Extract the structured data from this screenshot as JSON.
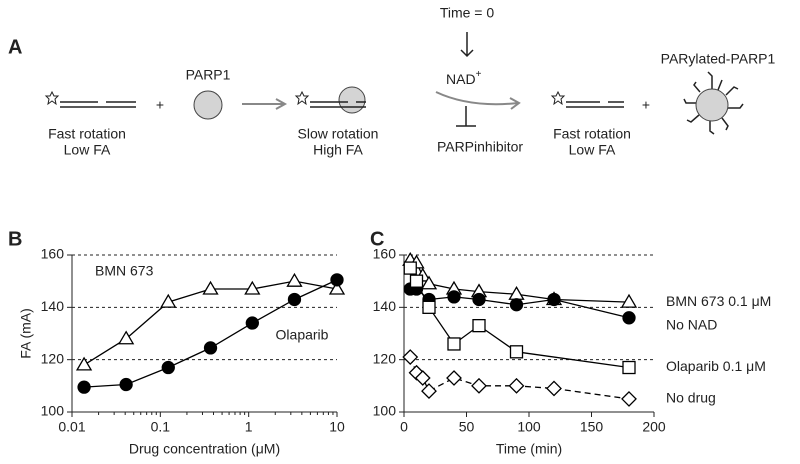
{
  "panel_a": {
    "label": "A",
    "time": "Time = 0",
    "parp1": "PARP1",
    "plus_1": "+",
    "state_1": [
      "Fast rotation",
      "Low FA"
    ],
    "state_2": [
      "Slow rotation",
      "High FA"
    ],
    "nad": "NAD",
    "nad_charge": "+",
    "inhibitor": "PARPinhibitor",
    "state_3": [
      "Fast rotation",
      "Low FA"
    ],
    "plus_2": "+",
    "product": "PARylated-PARP1"
  },
  "chart_data": [
    {
      "type": "scatter",
      "panel": "B",
      "x_label": "Drug concentration (μM)",
      "y_label": "FA (mA)",
      "xlog": true,
      "xlim": [
        0.01,
        10
      ],
      "xticks": [
        0.01,
        0.1,
        1,
        10
      ],
      "ylim": [
        100,
        160
      ],
      "yticks": [
        100,
        120,
        140,
        160
      ],
      "grid_lines": [
        120,
        140,
        160
      ],
      "series": [
        {
          "name": "BMN 673",
          "marker": "triangle",
          "filled": false,
          "color": "#000000",
          "x": [
            0.0137,
            0.041,
            0.123,
            0.37,
            1.1,
            3.3,
            10
          ],
          "values": [
            118,
            128,
            142,
            147,
            147,
            150,
            147
          ]
        },
        {
          "name": "Olaparib",
          "marker": "circle",
          "filled": true,
          "color": "#000000",
          "x": [
            0.0137,
            0.041,
            0.123,
            0.37,
            1.1,
            3.3,
            10
          ],
          "values": [
            109.5,
            110.5,
            117,
            124.5,
            134,
            143,
            150.5
          ]
        }
      ]
    },
    {
      "type": "line",
      "panel": "C",
      "x_label": "Time (min)",
      "xlog": false,
      "xlim": [
        0,
        200
      ],
      "xticks": [
        0,
        50,
        100,
        150,
        200
      ],
      "ylim": [
        100,
        160
      ],
      "yticks": [
        100,
        120,
        140,
        160
      ],
      "grid_lines": [
        120,
        140,
        160
      ],
      "series": [
        {
          "name": "BMN 673 0.1 μM",
          "marker": "triangle",
          "filled": false,
          "dashed": false,
          "color": "#000000",
          "x": [
            5,
            10,
            15,
            20,
            40,
            60,
            90,
            120,
            180
          ],
          "values": [
            158,
            157,
            152,
            149,
            147,
            146,
            145,
            143,
            142
          ]
        },
        {
          "name": "No NAD",
          "marker": "circle",
          "filled": true,
          "dashed": false,
          "color": "#000000",
          "x": [
            5,
            10,
            20,
            40,
            60,
            90,
            120,
            180
          ],
          "values": [
            147,
            147,
            143,
            144,
            143,
            141,
            143,
            136
          ]
        },
        {
          "name": "Olaparib 0.1 μM",
          "marker": "square",
          "filled": false,
          "dashed": false,
          "color": "#000000",
          "x": [
            5,
            10,
            20,
            40,
            60,
            90,
            180
          ],
          "values": [
            155,
            150,
            140,
            126,
            133,
            123,
            117
          ]
        },
        {
          "name": "No drug",
          "marker": "diamond",
          "filled": false,
          "dashed": true,
          "color": "#000000",
          "x": [
            5,
            10,
            15,
            20,
            40,
            60,
            90,
            120,
            180
          ],
          "values": [
            121,
            115,
            113,
            108,
            113,
            110,
            110,
            109,
            105
          ]
        }
      ]
    }
  ]
}
